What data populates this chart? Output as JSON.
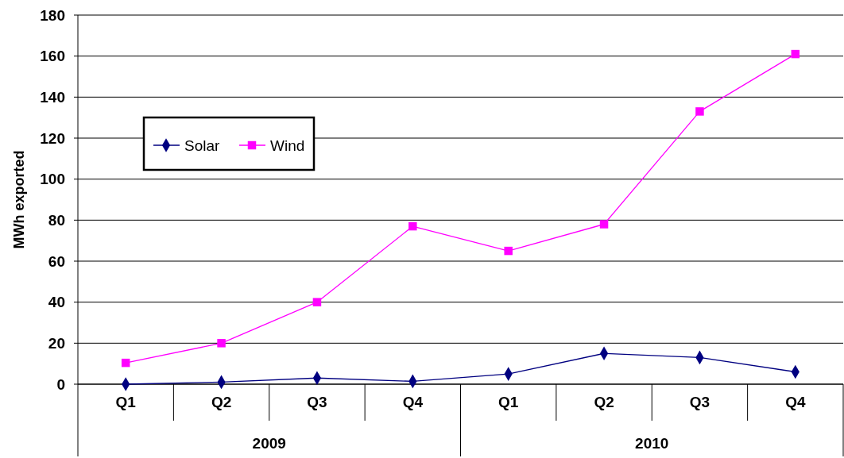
{
  "chart_data": {
    "type": "line",
    "ylabel": "MWh exported",
    "categories": [
      "Q1",
      "Q2",
      "Q3",
      "Q4",
      "Q1",
      "Q2",
      "Q3",
      "Q4"
    ],
    "series": [
      {
        "name": "Solar",
        "color": "#000080",
        "marker": "diamond",
        "values": [
          0,
          1,
          3,
          1.4,
          5,
          15,
          13,
          6
        ]
      },
      {
        "name": "Wind",
        "color": "#ff00ff",
        "marker": "square",
        "values": [
          10.4,
          20,
          40,
          77,
          65,
          78,
          133,
          161
        ]
      }
    ],
    "annotations": [
      "2009",
      "2010"
    ],
    "ylim": [
      0,
      180
    ],
    "yticks": [
      0,
      20,
      40,
      60,
      80,
      100,
      120,
      140,
      160,
      180
    ],
    "grid": "y",
    "legend": "top left"
  }
}
